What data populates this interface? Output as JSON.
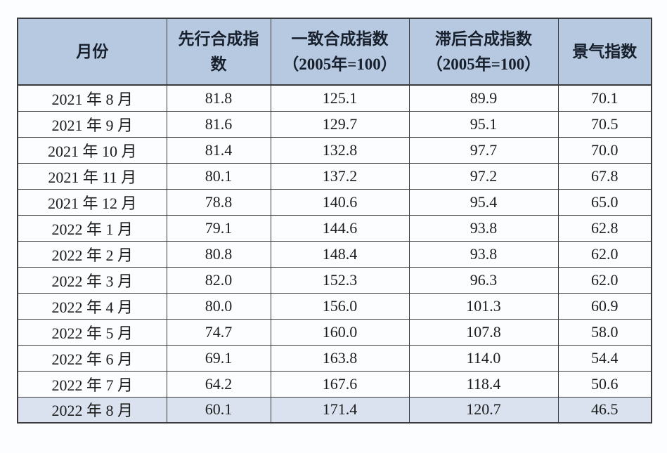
{
  "table": {
    "columns": [
      "月份",
      "先行合成指\n数",
      "一致合成指数\n（2005年=100）",
      "滞后合成指数\n（2005年=100）",
      "景气指数"
    ],
    "rows": [
      {
        "month": "2021 年 8 月",
        "leading": "81.8",
        "coincident": "125.1",
        "lagging": "89.9",
        "boom": "70.1",
        "highlight": false
      },
      {
        "month": "2021 年 9 月",
        "leading": "81.6",
        "coincident": "129.7",
        "lagging": "95.1",
        "boom": "70.5",
        "highlight": false
      },
      {
        "month": "2021 年 10 月",
        "leading": "81.4",
        "coincident": "132.8",
        "lagging": "97.7",
        "boom": "70.0",
        "highlight": false
      },
      {
        "month": "2021 年 11 月",
        "leading": "80.1",
        "coincident": "137.2",
        "lagging": "97.2",
        "boom": "67.8",
        "highlight": false
      },
      {
        "month": "2021 年 12 月",
        "leading": "78.8",
        "coincident": "140.6",
        "lagging": "95.4",
        "boom": "65.0",
        "highlight": false
      },
      {
        "month": "2022 年 1 月",
        "leading": "79.1",
        "coincident": "144.6",
        "lagging": "93.8",
        "boom": "62.8",
        "highlight": false
      },
      {
        "month": "2022 年 2 月",
        "leading": "80.8",
        "coincident": "148.4",
        "lagging": "93.8",
        "boom": "62.0",
        "highlight": false
      },
      {
        "month": "2022 年 3 月",
        "leading": "82.0",
        "coincident": "152.3",
        "lagging": "96.3",
        "boom": "62.0",
        "highlight": false
      },
      {
        "month": "2022 年 4 月",
        "leading": "80.0",
        "coincident": "156.0",
        "lagging": "101.3",
        "boom": "60.9",
        "highlight": false
      },
      {
        "month": "2022 年 5 月",
        "leading": "74.7",
        "coincident": "160.0",
        "lagging": "107.8",
        "boom": "58.0",
        "highlight": false
      },
      {
        "month": "2022 年 6 月",
        "leading": "69.1",
        "coincident": "163.8",
        "lagging": "114.0",
        "boom": "54.4",
        "highlight": false
      },
      {
        "month": "2022 年 7 月",
        "leading": "64.2",
        "coincident": "167.6",
        "lagging": "118.4",
        "boom": "50.6",
        "highlight": false
      },
      {
        "month": "2022 年 8 月",
        "leading": "60.1",
        "coincident": "171.4",
        "lagging": "120.7",
        "boom": "46.5",
        "highlight": true
      }
    ],
    "highlighted_month": "2022 年 8 月",
    "colors": {
      "header_bg": "#b7c9e0",
      "highlight_bg": "#d9e2ee",
      "border": "#3a3a3a",
      "text": "#1c1c1c",
      "page_bg": "#fcfdfe"
    }
  }
}
